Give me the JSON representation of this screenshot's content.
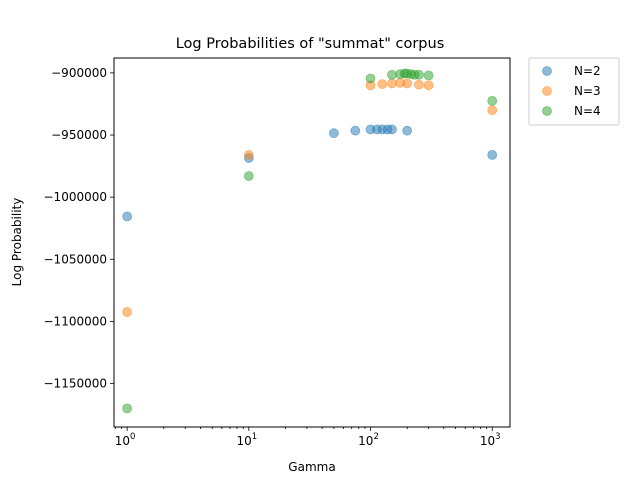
{
  "chart_data": {
    "type": "scatter",
    "title": "Log Probabilities of \"summat\" corpus",
    "xlabel": "Gamma",
    "ylabel": "Log Probability",
    "xscale": "log",
    "xlim": [
      0.78,
      1400
    ],
    "ylim": [
      -1185000,
      -888000
    ],
    "x_ticks": [
      {
        "value": 1,
        "base": "10",
        "exp": "0"
      },
      {
        "value": 10,
        "base": "10",
        "exp": "1"
      },
      {
        "value": 100,
        "base": "10",
        "exp": "2"
      },
      {
        "value": 1000,
        "base": "10",
        "exp": "3"
      }
    ],
    "y_ticks": [
      {
        "value": -900000,
        "label": "−900000"
      },
      {
        "value": -950000,
        "label": "−950000"
      },
      {
        "value": -1000000,
        "label": "−1000000"
      },
      {
        "value": -1050000,
        "label": "−1050000"
      },
      {
        "value": -1100000,
        "label": "−1100000"
      },
      {
        "value": -1150000,
        "label": "−1150000"
      }
    ],
    "grid": false,
    "legend_position": "outside-top-right",
    "series": [
      {
        "name": "N=2",
        "color": "#1f77b4",
        "points": [
          {
            "x": 1,
            "y": -1015500
          },
          {
            "x": 10,
            "y": -968500
          },
          {
            "x": 50,
            "y": -948500
          },
          {
            "x": 75,
            "y": -946500
          },
          {
            "x": 100,
            "y": -945500
          },
          {
            "x": 113,
            "y": -945500
          },
          {
            "x": 125,
            "y": -945500
          },
          {
            "x": 138,
            "y": -945500
          },
          {
            "x": 150,
            "y": -945500
          },
          {
            "x": 200,
            "y": -946500
          },
          {
            "x": 1000,
            "y": -966000
          }
        ]
      },
      {
        "name": "N=3",
        "color": "#ff7f0e",
        "points": [
          {
            "x": 1,
            "y": -1092500
          },
          {
            "x": 10,
            "y": -966000
          },
          {
            "x": 100,
            "y": -910000
          },
          {
            "x": 125,
            "y": -909000
          },
          {
            "x": 150,
            "y": -908500
          },
          {
            "x": 175,
            "y": -908000
          },
          {
            "x": 200,
            "y": -908500
          },
          {
            "x": 250,
            "y": -909500
          },
          {
            "x": 300,
            "y": -910000
          },
          {
            "x": 1000,
            "y": -930000
          }
        ]
      },
      {
        "name": "N=4",
        "color": "#2ca02c",
        "points": [
          {
            "x": 1,
            "y": -1170000
          },
          {
            "x": 10,
            "y": -983000
          },
          {
            "x": 100,
            "y": -904500
          },
          {
            "x": 150,
            "y": -901500
          },
          {
            "x": 175,
            "y": -901000
          },
          {
            "x": 190,
            "y": -900500
          },
          {
            "x": 200,
            "y": -900500
          },
          {
            "x": 215,
            "y": -901000
          },
          {
            "x": 230,
            "y": -901500
          },
          {
            "x": 250,
            "y": -901500
          },
          {
            "x": 300,
            "y": -902000
          },
          {
            "x": 1000,
            "y": -922500
          }
        ]
      }
    ]
  }
}
